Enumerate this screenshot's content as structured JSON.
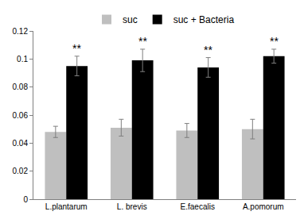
{
  "chart_data": {
    "type": "bar",
    "categories": [
      "L.plantarum",
      "L. brevis",
      "E.faecalis",
      "A.pomorum"
    ],
    "series": [
      {
        "name": "suc",
        "color": "#bfbfbf",
        "values": [
          0.048,
          0.051,
          0.049,
          0.05
        ],
        "errors": [
          0.004,
          0.006,
          0.005,
          0.007
        ]
      },
      {
        "name": "suc + Bacteria",
        "color": "#000000",
        "values": [
          0.095,
          0.099,
          0.094,
          0.102
        ],
        "errors": [
          0.007,
          0.008,
          0.007,
          0.005
        ]
      }
    ],
    "annotations": [
      {
        "category": "L.plantarum",
        "series": "suc + Bacteria",
        "text": "**"
      },
      {
        "category": "L. brevis",
        "series": "suc + Bacteria",
        "text": "**"
      },
      {
        "category": "E.faecalis",
        "series": "suc + Bacteria",
        "text": "**"
      },
      {
        "category": "A.pomorum",
        "series": "suc + Bacteria",
        "text": "**"
      }
    ],
    "ylim": [
      0,
      0.12
    ],
    "yticks": [
      0,
      0.02,
      0.04,
      0.06,
      0.08,
      0.1,
      0.12
    ],
    "grid": false,
    "legend": "top"
  }
}
